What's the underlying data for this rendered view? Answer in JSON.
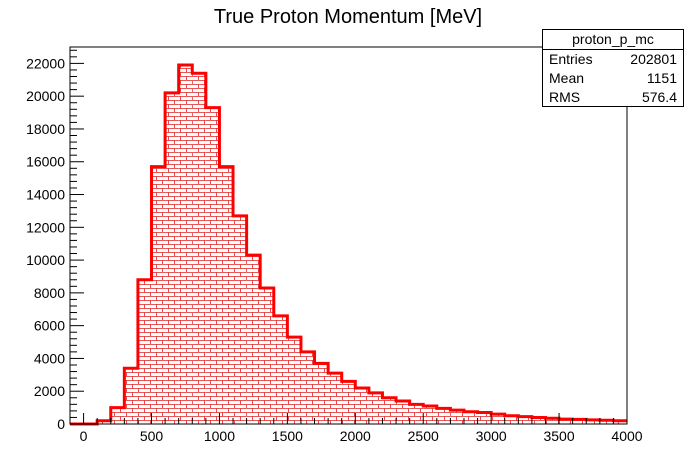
{
  "chart_data": {
    "type": "bar",
    "title": "True Proton Momentum [MeV]",
    "xlabel": "",
    "ylabel": "",
    "xlim": [
      -100,
      4000
    ],
    "ylim": [
      0,
      23000
    ],
    "bin_width": 100,
    "x_ticks": [
      0,
      500,
      1000,
      1500,
      2000,
      2500,
      3000,
      3500,
      4000
    ],
    "y_ticks": [
      0,
      2000,
      4000,
      6000,
      8000,
      10000,
      12000,
      14000,
      16000,
      18000,
      20000,
      22000
    ],
    "bins": [
      {
        "x": -100,
        "y": 0
      },
      {
        "x": 0,
        "y": 0
      },
      {
        "x": 100,
        "y": 200
      },
      {
        "x": 200,
        "y": 1000
      },
      {
        "x": 300,
        "y": 3400
      },
      {
        "x": 400,
        "y": 8800
      },
      {
        "x": 500,
        "y": 15700
      },
      {
        "x": 600,
        "y": 20200
      },
      {
        "x": 700,
        "y": 21900
      },
      {
        "x": 800,
        "y": 21400
      },
      {
        "x": 900,
        "y": 19300
      },
      {
        "x": 1000,
        "y": 15700
      },
      {
        "x": 1100,
        "y": 12700
      },
      {
        "x": 1200,
        "y": 10300
      },
      {
        "x": 1300,
        "y": 8300
      },
      {
        "x": 1400,
        "y": 6600
      },
      {
        "x": 1500,
        "y": 5300
      },
      {
        "x": 1600,
        "y": 4400
      },
      {
        "x": 1700,
        "y": 3700
      },
      {
        "x": 1800,
        "y": 3100
      },
      {
        "x": 1900,
        "y": 2600
      },
      {
        "x": 2000,
        "y": 2200
      },
      {
        "x": 2100,
        "y": 1900
      },
      {
        "x": 2200,
        "y": 1600
      },
      {
        "x": 2300,
        "y": 1400
      },
      {
        "x": 2400,
        "y": 1200
      },
      {
        "x": 2500,
        "y": 1100
      },
      {
        "x": 2600,
        "y": 950
      },
      {
        "x": 2700,
        "y": 850
      },
      {
        "x": 2800,
        "y": 750
      },
      {
        "x": 2900,
        "y": 700
      },
      {
        "x": 3000,
        "y": 600
      },
      {
        "x": 3100,
        "y": 500
      },
      {
        "x": 3200,
        "y": 450
      },
      {
        "x": 3300,
        "y": 400
      },
      {
        "x": 3400,
        "y": 350
      },
      {
        "x": 3500,
        "y": 300
      },
      {
        "x": 3600,
        "y": 280
      },
      {
        "x": 3700,
        "y": 250
      },
      {
        "x": 3800,
        "y": 230
      },
      {
        "x": 3900,
        "y": 200
      }
    ],
    "line_color": "#ff0000",
    "fill_pattern": "red brick hatch",
    "stats": {
      "name": "proton_p_mc",
      "rows": [
        {
          "label": "Entries",
          "value": "202801"
        },
        {
          "label": "Mean",
          "value": "1151"
        },
        {
          "label": "RMS",
          "value": "576.4"
        }
      ]
    }
  }
}
